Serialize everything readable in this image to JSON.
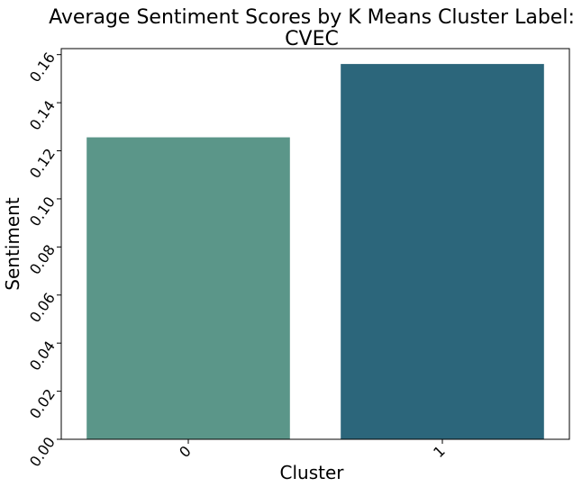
{
  "chart_data": {
    "type": "bar",
    "title_lines": [
      "Average Sentiment Scores by K Means Cluster Label:",
      "CVEC"
    ],
    "xlabel": "Cluster",
    "ylabel": "Sentiment",
    "categories": [
      "0",
      "1"
    ],
    "values": [
      0.1256,
      0.1561
    ],
    "bar_colors": [
      "#5b9689",
      "#2c667b"
    ],
    "ylim": [
      0,
      0.1625
    ],
    "yticks": [
      0.0,
      0.02,
      0.04,
      0.06,
      0.08,
      0.1,
      0.12,
      0.14,
      0.16
    ],
    "ytick_labels": [
      "0.00",
      "0.02",
      "0.04",
      "0.06",
      "0.08",
      "0.10",
      "0.12",
      "0.14",
      "0.16"
    ],
    "grid": false,
    "legend": "none"
  }
}
